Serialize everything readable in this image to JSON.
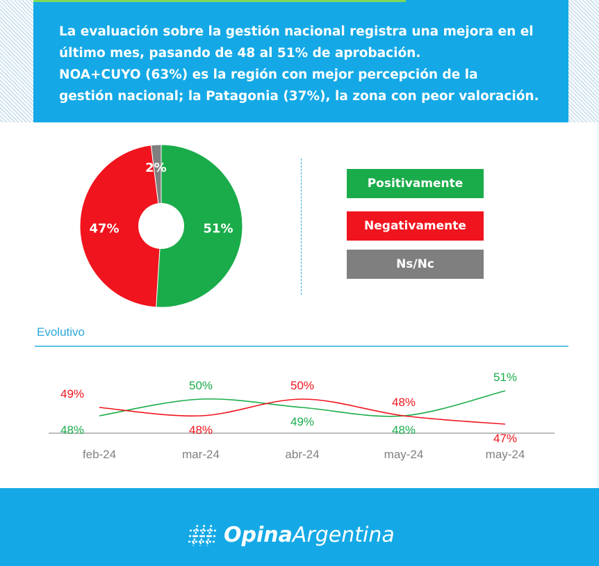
{
  "header": {
    "headline": "La evaluación sobre la gestión nacional registra una mejora en el\núltimo mes, pasando de 48 al 51% de aprobación.\nNOA+CUYO (63%) es la región con mejor percepción de la\ngestión nacional; la Patagonia (37%), la zona con peor valoración."
  },
  "colors": {
    "positive": "#1aac4a",
    "negative": "#f0141e",
    "nsnc": "#7f7f7f",
    "accent": "#14a9e6"
  },
  "evolutivo_label": "Evolutivo",
  "brand": {
    "bold": "Opina",
    "light": "Argentina",
    "icon": "hash-grid-icon"
  },
  "chart_data": [
    {
      "type": "pie",
      "donut": true,
      "slices": [
        {
          "label": "Positivamente",
          "value": 51,
          "value_label": "51%",
          "color": "#1aac4a"
        },
        {
          "label": "Negativamente",
          "value": 47,
          "value_label": "47%",
          "color": "#f0141e"
        },
        {
          "label": "Ns/Nc",
          "value": 2,
          "value_label": "2%",
          "color": "#7f7f7f"
        }
      ],
      "legend_placement": "right"
    },
    {
      "type": "line",
      "categories": [
        "feb-24",
        "mar-24",
        "abr-24",
        "may-24",
        "may-24"
      ],
      "series": [
        {
          "name": "Positivamente",
          "color": "#1aac4a",
          "values": [
            48,
            50,
            49,
            48,
            51
          ],
          "labels": [
            "48%",
            "50%",
            "49%",
            "48%",
            "51%"
          ]
        },
        {
          "name": "Negativamente",
          "color": "#f0141e",
          "values": [
            49,
            48,
            50,
            48,
            47
          ],
          "labels": [
            "49%",
            "48%",
            "50%",
            "48%",
            "47%"
          ]
        }
      ],
      "ylim": [
        46,
        52
      ],
      "grid": false
    }
  ]
}
